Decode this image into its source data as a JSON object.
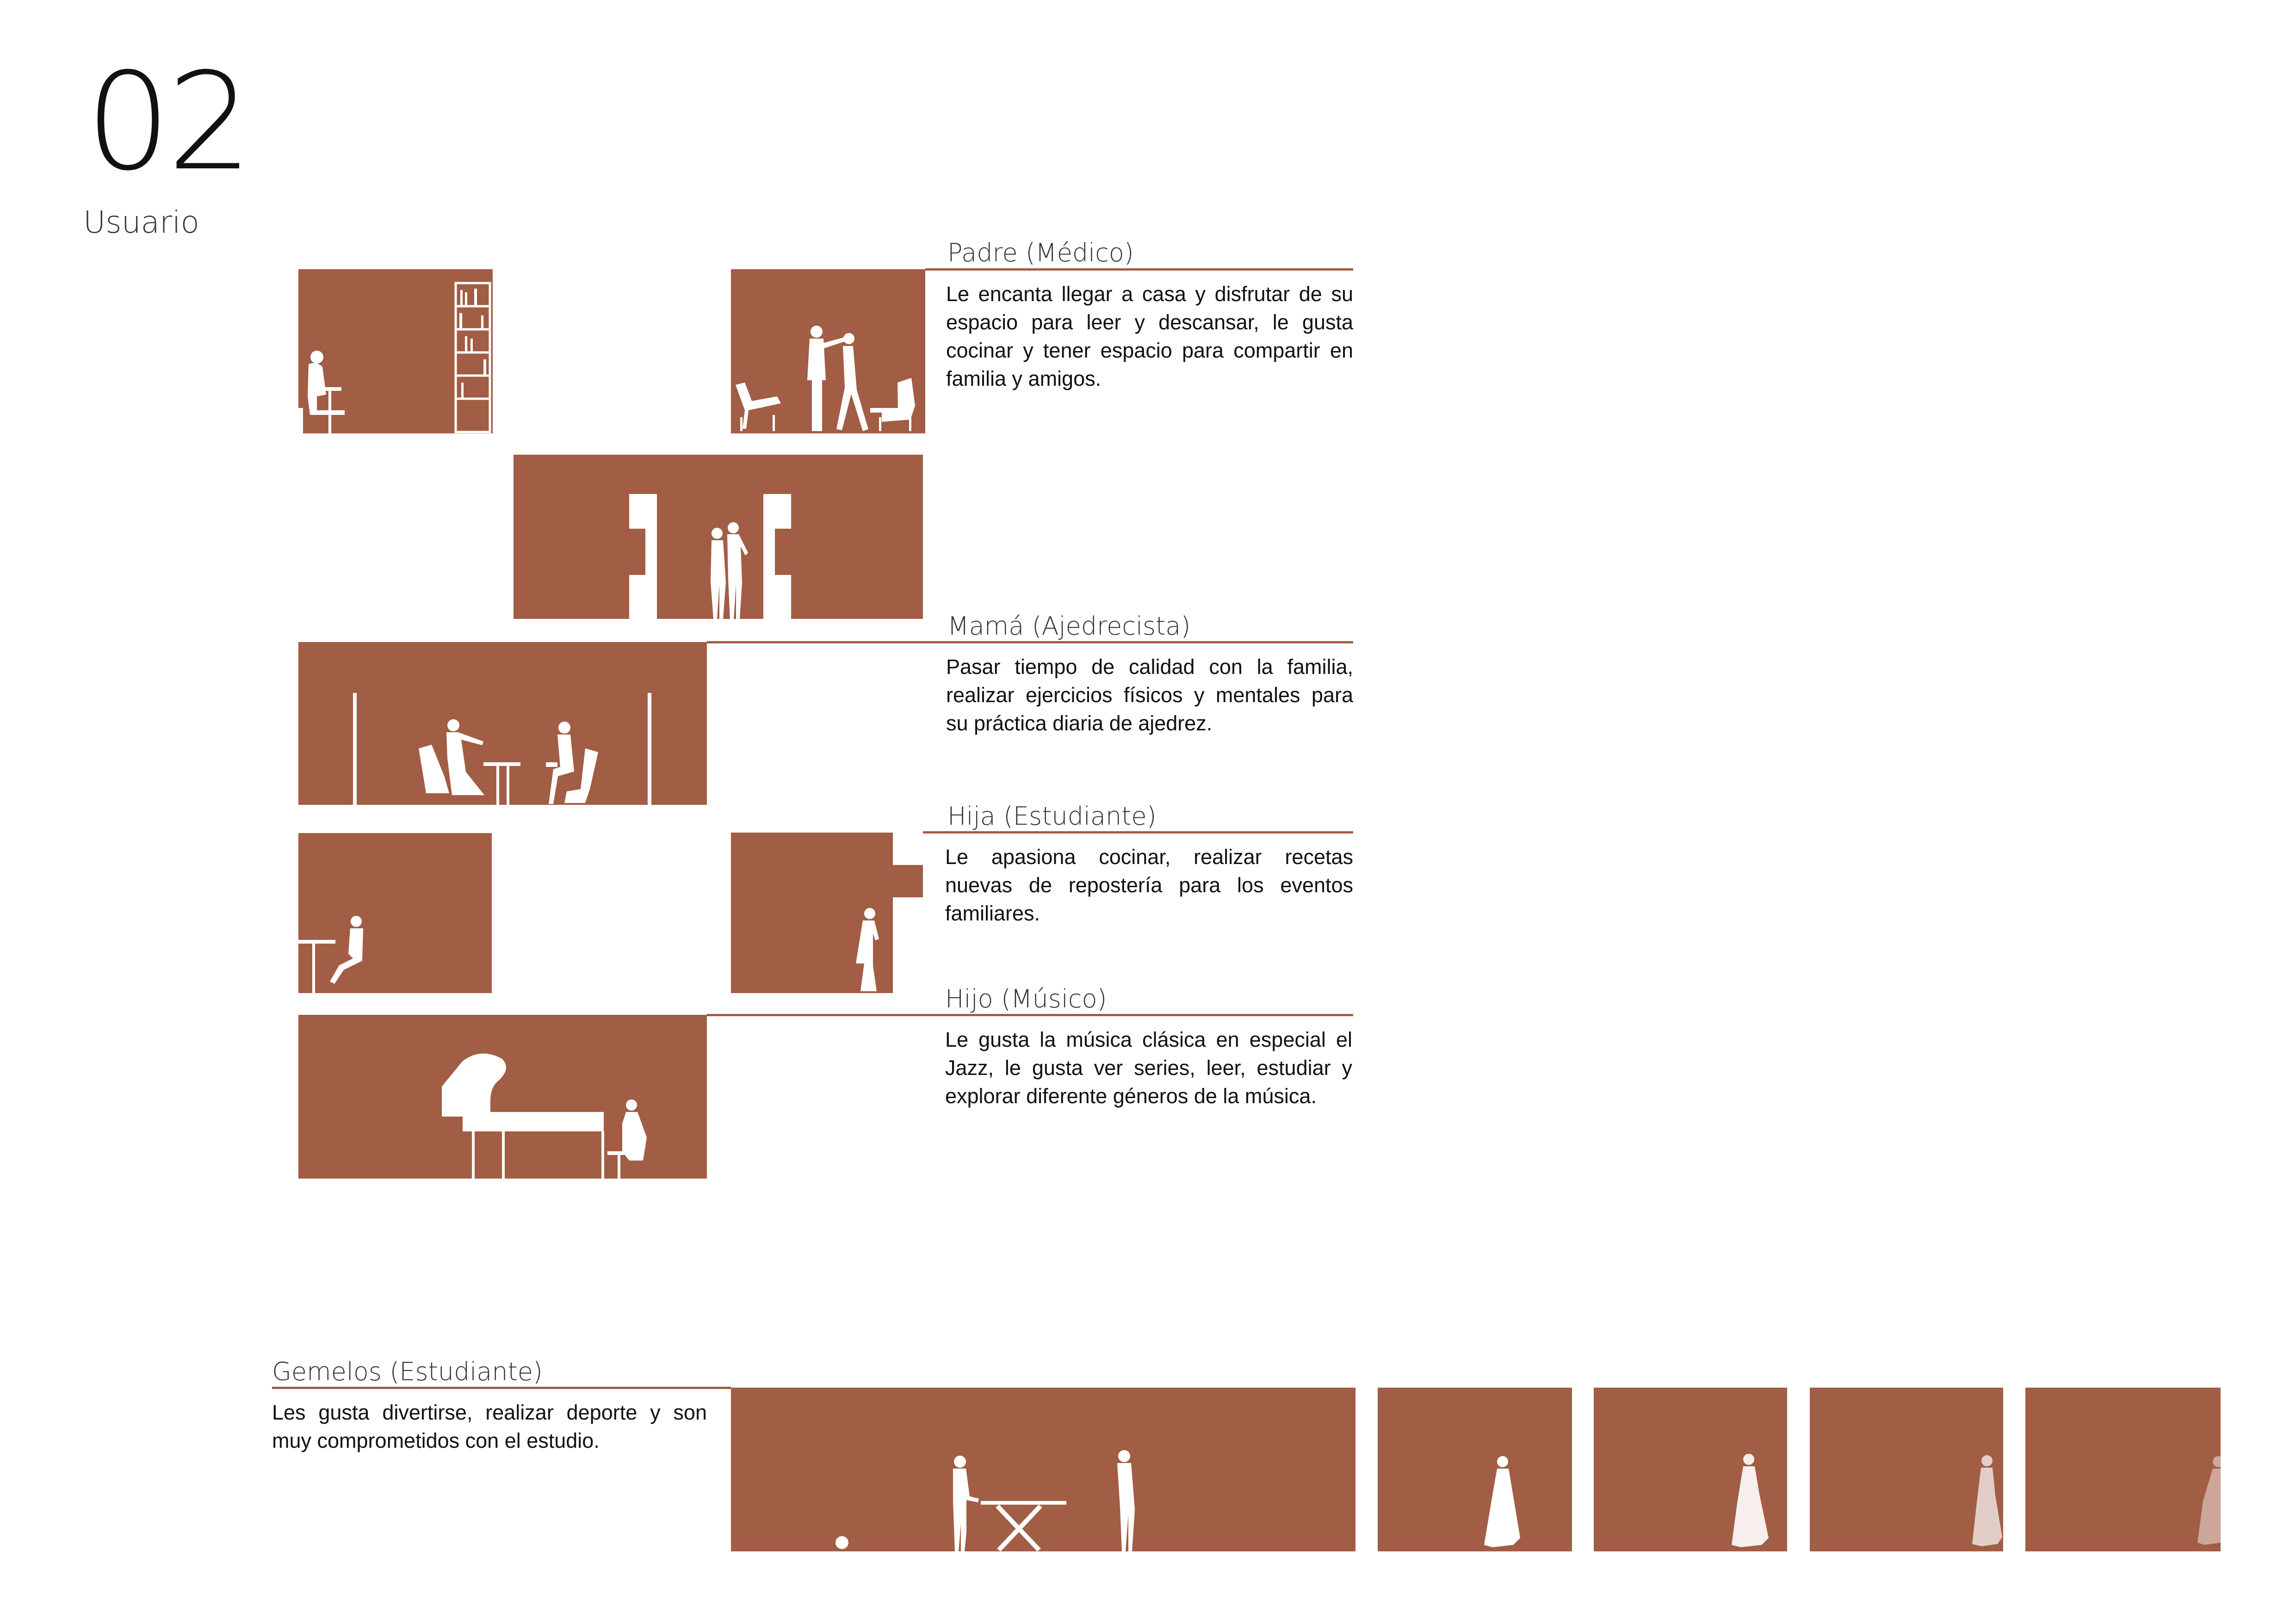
{
  "page": {
    "number": "02",
    "title": "Usuario"
  },
  "colors": {
    "panel": "#a25d45",
    "figure": "#ffffff"
  },
  "users": [
    {
      "heading": "Padre  (Médico)",
      "description": "Le encanta  llegar a casa y disfrutar de su espacio para leer y descansar, le gusta cocinar y tener espacio para compartir en familia y amigos."
    },
    {
      "heading": "Mamá (Ajedrecista)",
      "description": "Pasar tiempo de calidad con la familia, realizar ejercicios físicos y mentales para su práctica diaria de ajedrez."
    },
    {
      "heading": "Hija (Estudiante)",
      "description": "Le apasiona cocinar, realizar recetas nuevas de repostería para los eventos familiares."
    },
    {
      "heading": "Hijo (Músico)",
      "description": "Le gusta la música clásica en especial el Jazz, le gusta ver series, leer, estudiar y explorar diferente géneros de la música."
    },
    {
      "heading": "Gemelos (Estudiante)",
      "description": "Les gusta divertirse, realizar deporte y son muy comprometidos con el estudio."
    }
  ]
}
